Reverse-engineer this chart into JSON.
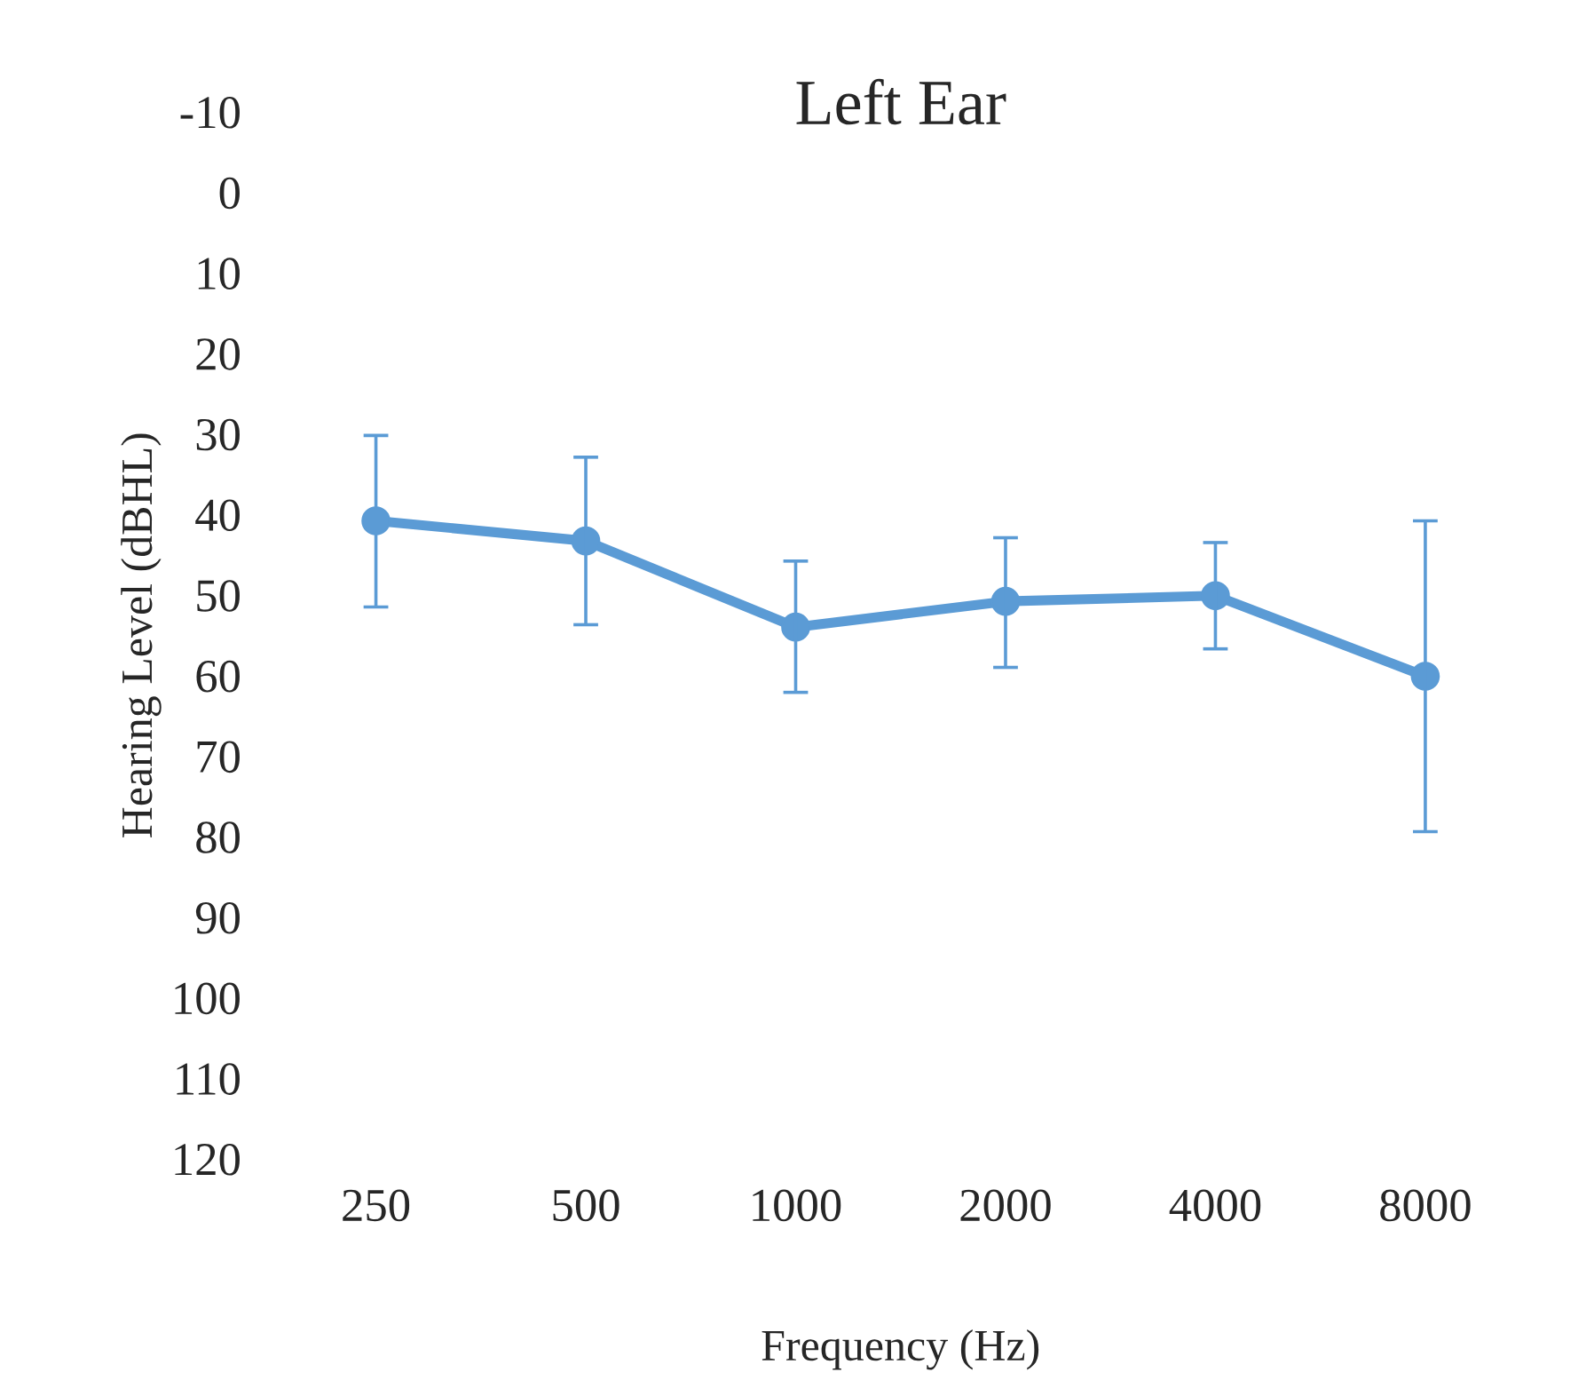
{
  "chart_data": {
    "type": "line",
    "title": "Left Ear",
    "xlabel": "Frequency (Hz)",
    "ylabel": "Hearing Level (dBHL)",
    "categories": [
      "250",
      "500",
      "1000",
      "2000",
      "4000",
      "8000"
    ],
    "series": [
      {
        "color": "#5b9bd5",
        "values": [
          40.8,
          43.3,
          54.0,
          50.8,
          50.1,
          60.1
        ],
        "errors": [
          [
            30.2,
            51.5
          ],
          [
            32.9,
            53.7
          ],
          [
            45.8,
            62.1
          ],
          [
            42.9,
            59.0
          ],
          [
            43.5,
            56.7
          ],
          [
            40.8,
            79.4
          ]
        ]
      }
    ],
    "ylim": [
      120,
      -10
    ],
    "yticks": [
      -10,
      0,
      10,
      20,
      30,
      40,
      50,
      60,
      70,
      80,
      90,
      100,
      110,
      120
    ],
    "marker": "circle",
    "line_style": "solid",
    "grid": false,
    "legend": false
  }
}
